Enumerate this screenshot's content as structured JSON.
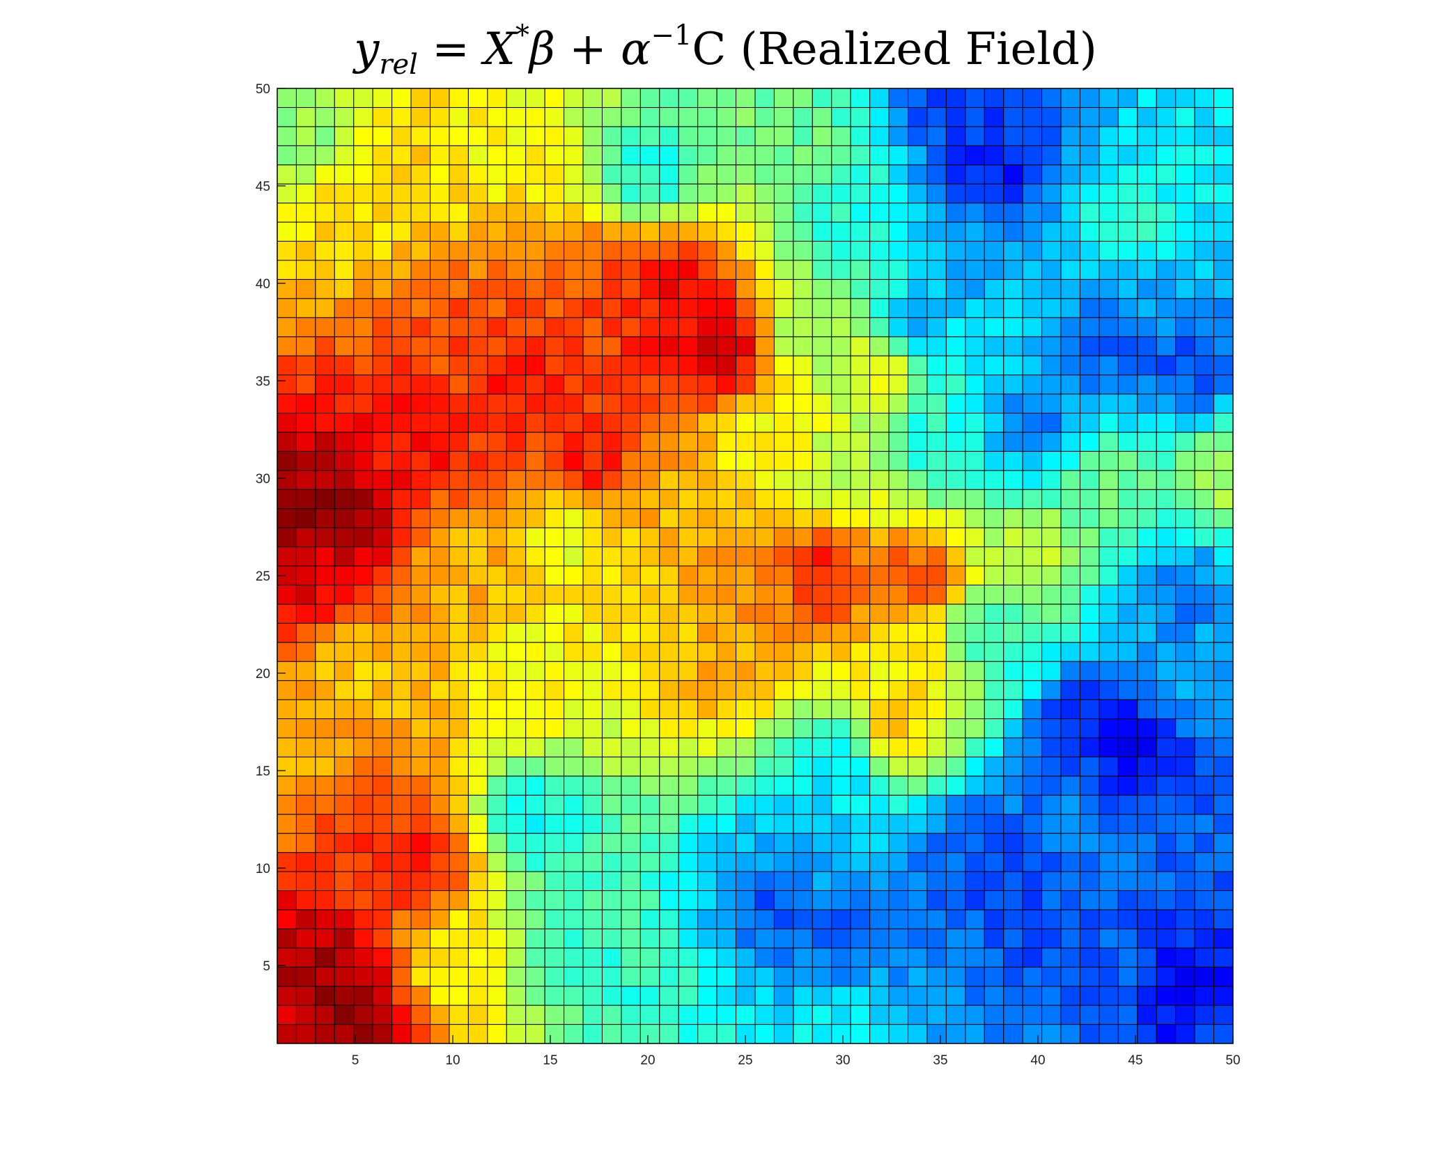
{
  "title": {
    "y": "y",
    "rel": "rel",
    "eq": " = ",
    "X": "X",
    "star": "*",
    "beta": "β",
    "plus": " + ",
    "alpha": "α",
    "inv": "−1",
    "C": "C",
    "suffix": " (Realized Field)"
  },
  "chart_data": {
    "type": "heatmap",
    "title": "y_rel = X*β + α^-1 C (Realized Field)",
    "nx": 50,
    "ny": 50,
    "xlim": [
      1,
      50
    ],
    "ylim": [
      1,
      50
    ],
    "xticks": [
      5,
      10,
      15,
      20,
      25,
      30,
      35,
      40,
      45,
      50
    ],
    "yticks": [
      5,
      10,
      15,
      20,
      25,
      30,
      35,
      40,
      45,
      50
    ],
    "colormap": "jet",
    "grid": true,
    "value_scale": [
      0,
      1
    ],
    "anchors": [
      {
        "x": 1,
        "y": 1,
        "v": 0.92
      },
      {
        "x": 4,
        "y": 1,
        "v": 0.97
      },
      {
        "x": 3,
        "y": 4,
        "v": 0.97
      },
      {
        "x": 4,
        "y": 28,
        "v": 0.98
      },
      {
        "x": 1,
        "y": 28,
        "v": 0.99
      },
      {
        "x": 3,
        "y": 26,
        "v": 0.9
      },
      {
        "x": 8,
        "y": 10,
        "v": 0.85
      },
      {
        "x": 6,
        "y": 12,
        "v": 0.82
      },
      {
        "x": 10,
        "y": 5,
        "v": 0.62
      },
      {
        "x": 2,
        "y": 16,
        "v": 0.7
      },
      {
        "x": 5,
        "y": 20,
        "v": 0.68
      },
      {
        "x": 8,
        "y": 32,
        "v": 0.86
      },
      {
        "x": 13,
        "y": 35,
        "v": 0.86
      },
      {
        "x": 17,
        "y": 31,
        "v": 0.86
      },
      {
        "x": 10,
        "y": 37,
        "v": 0.8
      },
      {
        "x": 21,
        "y": 40,
        "v": 0.88
      },
      {
        "x": 24,
        "y": 37,
        "v": 0.93
      },
      {
        "x": 22,
        "y": 38,
        "v": 0.88
      },
      {
        "x": 18,
        "y": 40,
        "v": 0.8
      },
      {
        "x": 29,
        "y": 25,
        "v": 0.86
      },
      {
        "x": 34,
        "y": 25,
        "v": 0.8
      },
      {
        "x": 26,
        "y": 24,
        "v": 0.74
      },
      {
        "x": 24,
        "y": 20,
        "v": 0.7
      },
      {
        "x": 4,
        "y": 44,
        "v": 0.66
      },
      {
        "x": 2,
        "y": 48,
        "v": 0.52
      },
      {
        "x": 8,
        "y": 47,
        "v": 0.66
      },
      {
        "x": 12,
        "y": 48,
        "v": 0.62
      },
      {
        "x": 20,
        "y": 46,
        "v": 0.4
      },
      {
        "x": 28,
        "y": 47,
        "v": 0.48
      },
      {
        "x": 30,
        "y": 43,
        "v": 0.4
      },
      {
        "x": 36,
        "y": 50,
        "v": 0.18
      },
      {
        "x": 38,
        "y": 46,
        "v": 0.15
      },
      {
        "x": 37,
        "y": 42,
        "v": 0.28
      },
      {
        "x": 34,
        "y": 38,
        "v": 0.3
      },
      {
        "x": 44,
        "y": 37,
        "v": 0.22
      },
      {
        "x": 48,
        "y": 36,
        "v": 0.2
      },
      {
        "x": 40,
        "y": 33,
        "v": 0.24
      },
      {
        "x": 46,
        "y": 40,
        "v": 0.3
      },
      {
        "x": 45,
        "y": 43,
        "v": 0.42
      },
      {
        "x": 50,
        "y": 30,
        "v": 0.55
      },
      {
        "x": 44,
        "y": 30,
        "v": 0.48
      },
      {
        "x": 48,
        "y": 24,
        "v": 0.25
      },
      {
        "x": 48,
        "y": 20,
        "v": 0.3
      },
      {
        "x": 45,
        "y": 16,
        "v": 0.12
      },
      {
        "x": 43,
        "y": 17,
        "v": 0.15
      },
      {
        "x": 42,
        "y": 13,
        "v": 0.25
      },
      {
        "x": 30,
        "y": 15,
        "v": 0.35
      },
      {
        "x": 28,
        "y": 10,
        "v": 0.3
      },
      {
        "x": 36,
        "y": 10,
        "v": 0.22
      },
      {
        "x": 38,
        "y": 10,
        "v": 0.18
      },
      {
        "x": 27,
        "y": 8,
        "v": 0.2
      },
      {
        "x": 30,
        "y": 6,
        "v": 0.22
      },
      {
        "x": 40,
        "y": 6,
        "v": 0.2
      },
      {
        "x": 44,
        "y": 4,
        "v": 0.22
      },
      {
        "x": 48,
        "y": 3,
        "v": 0.12
      },
      {
        "x": 50,
        "y": 1,
        "v": 0.18
      },
      {
        "x": 40,
        "y": 1,
        "v": 0.25
      },
      {
        "x": 30,
        "y": 1,
        "v": 0.38
      },
      {
        "x": 20,
        "y": 2,
        "v": 0.42
      },
      {
        "x": 16,
        "y": 6,
        "v": 0.42
      },
      {
        "x": 14,
        "y": 12,
        "v": 0.38
      },
      {
        "x": 34,
        "y": 20,
        "v": 0.65
      },
      {
        "x": 33,
        "y": 17,
        "v": 0.68
      },
      {
        "x": 38,
        "y": 22,
        "v": 0.42
      },
      {
        "x": 40,
        "y": 26,
        "v": 0.56
      },
      {
        "x": 14,
        "y": 20,
        "v": 0.62
      },
      {
        "x": 10,
        "y": 26,
        "v": 0.7
      },
      {
        "x": 16,
        "y": 27,
        "v": 0.6
      },
      {
        "x": 20,
        "y": 29,
        "v": 0.7
      },
      {
        "x": 26,
        "y": 32,
        "v": 0.62
      },
      {
        "x": 30,
        "y": 30,
        "v": 0.56
      },
      {
        "x": 35,
        "y": 32,
        "v": 0.4
      },
      {
        "x": 28,
        "y": 38,
        "v": 0.52
      },
      {
        "x": 32,
        "y": 36,
        "v": 0.62
      }
    ]
  }
}
